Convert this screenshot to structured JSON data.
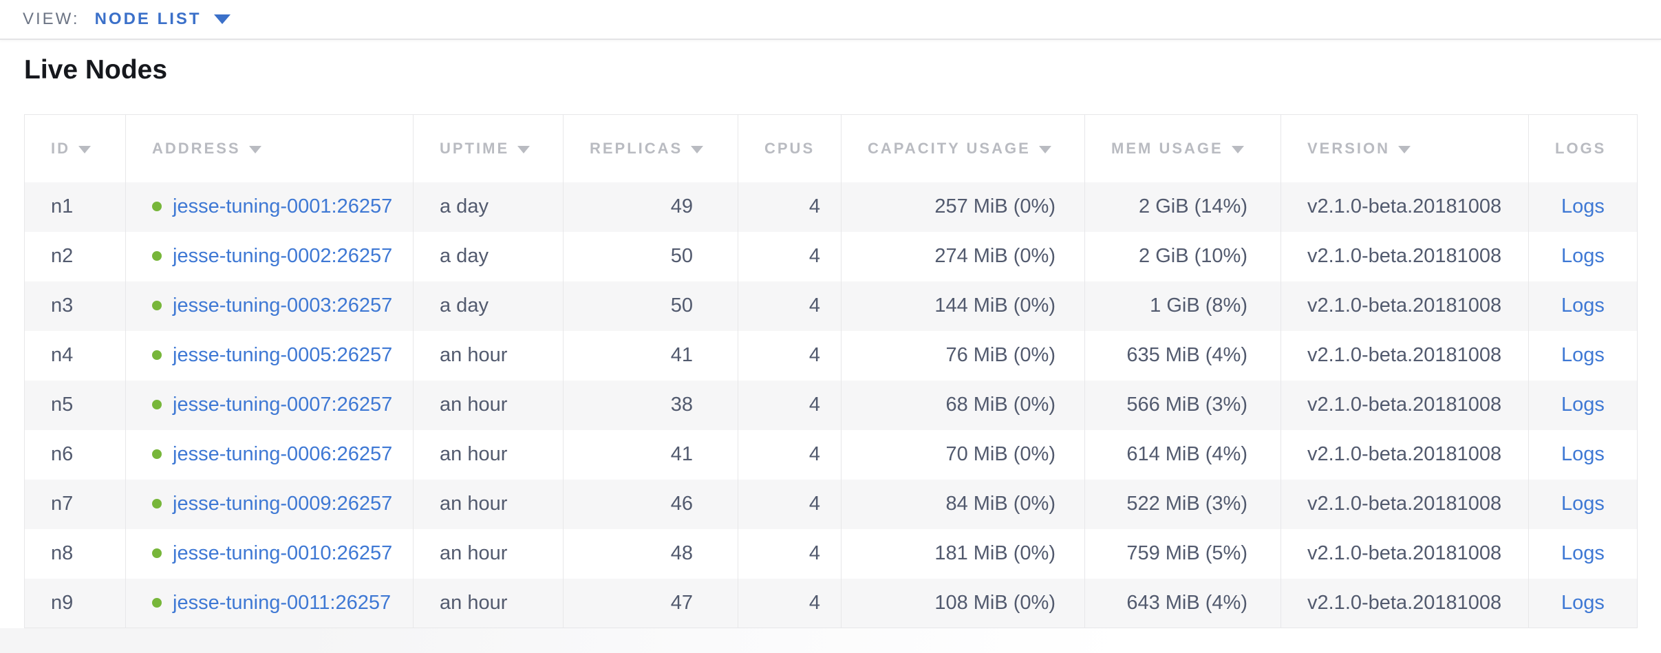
{
  "view_bar": {
    "label": "VIEW:",
    "selected": "NODE LIST"
  },
  "page": {
    "title": "Live Nodes"
  },
  "table": {
    "columns": [
      {
        "key": "id",
        "label": "ID",
        "sortable": true
      },
      {
        "key": "address",
        "label": "ADDRESS",
        "sortable": true
      },
      {
        "key": "uptime",
        "label": "UPTIME",
        "sortable": true
      },
      {
        "key": "replicas",
        "label": "REPLICAS",
        "sortable": true
      },
      {
        "key": "cpus",
        "label": "CPUS",
        "sortable": false
      },
      {
        "key": "capacity",
        "label": "CAPACITY USAGE",
        "sortable": true
      },
      {
        "key": "mem",
        "label": "MEM USAGE",
        "sortable": true
      },
      {
        "key": "version",
        "label": "VERSION",
        "sortable": true
      },
      {
        "key": "logs",
        "label": "LOGS",
        "sortable": false
      }
    ],
    "rows": [
      {
        "id": "n1",
        "status": "healthy",
        "address": "jesse-tuning-0001:26257",
        "uptime": "a day",
        "replicas": "49",
        "cpus": "4",
        "capacity": "257 MiB (0%)",
        "mem": "2 GiB (14%)",
        "version": "v2.1.0-beta.20181008",
        "logs": "Logs"
      },
      {
        "id": "n2",
        "status": "healthy",
        "address": "jesse-tuning-0002:26257",
        "uptime": "a day",
        "replicas": "50",
        "cpus": "4",
        "capacity": "274 MiB (0%)",
        "mem": "2 GiB (10%)",
        "version": "v2.1.0-beta.20181008",
        "logs": "Logs"
      },
      {
        "id": "n3",
        "status": "healthy",
        "address": "jesse-tuning-0003:26257",
        "uptime": "a day",
        "replicas": "50",
        "cpus": "4",
        "capacity": "144 MiB (0%)",
        "mem": "1 GiB (8%)",
        "version": "v2.1.0-beta.20181008",
        "logs": "Logs"
      },
      {
        "id": "n4",
        "status": "healthy",
        "address": "jesse-tuning-0005:26257",
        "uptime": "an hour",
        "replicas": "41",
        "cpus": "4",
        "capacity": "76 MiB (0%)",
        "mem": "635 MiB (4%)",
        "version": "v2.1.0-beta.20181008",
        "logs": "Logs"
      },
      {
        "id": "n5",
        "status": "healthy",
        "address": "jesse-tuning-0007:26257",
        "uptime": "an hour",
        "replicas": "38",
        "cpus": "4",
        "capacity": "68 MiB (0%)",
        "mem": "566 MiB (3%)",
        "version": "v2.1.0-beta.20181008",
        "logs": "Logs"
      },
      {
        "id": "n6",
        "status": "healthy",
        "address": "jesse-tuning-0006:26257",
        "uptime": "an hour",
        "replicas": "41",
        "cpus": "4",
        "capacity": "70 MiB (0%)",
        "mem": "614 MiB (4%)",
        "version": "v2.1.0-beta.20181008",
        "logs": "Logs"
      },
      {
        "id": "n7",
        "status": "healthy",
        "address": "jesse-tuning-0009:26257",
        "uptime": "an hour",
        "replicas": "46",
        "cpus": "4",
        "capacity": "84 MiB (0%)",
        "mem": "522 MiB (3%)",
        "version": "v2.1.0-beta.20181008",
        "logs": "Logs"
      },
      {
        "id": "n8",
        "status": "healthy",
        "address": "jesse-tuning-0010:26257",
        "uptime": "an hour",
        "replicas": "48",
        "cpus": "4",
        "capacity": "181 MiB (0%)",
        "mem": "759 MiB (5%)",
        "version": "v2.1.0-beta.20181008",
        "logs": "Logs"
      },
      {
        "id": "n9",
        "status": "healthy",
        "address": "jesse-tuning-0011:26257",
        "uptime": "an hour",
        "replicas": "47",
        "cpus": "4",
        "capacity": "108 MiB (0%)",
        "mem": "643 MiB (4%)",
        "version": "v2.1.0-beta.20181008",
        "logs": "Logs"
      }
    ]
  },
  "colors": {
    "view_blue": "#3b70c9",
    "link_blue": "#3e78d4",
    "healthy_green": "#77b63a",
    "header_text": "#b9bbc1",
    "cell_text": "#525a6e",
    "row_stripe": "#f6f6f7",
    "border": "#e7e7e9",
    "title_text": "#16181d",
    "view_label_text": "#6c7484"
  }
}
